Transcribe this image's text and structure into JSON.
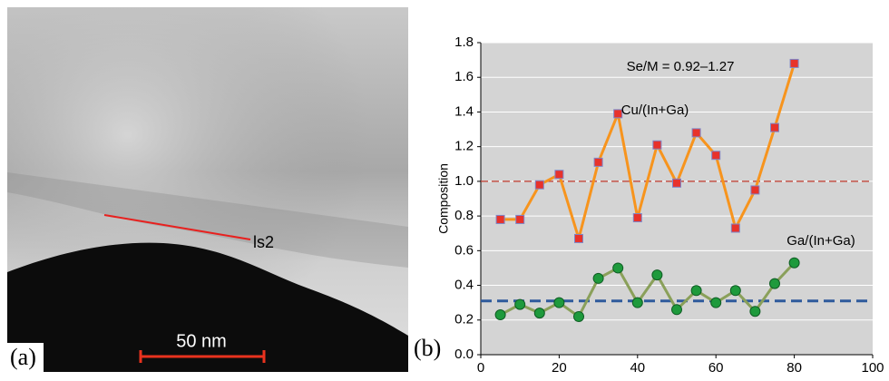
{
  "panel_a": {
    "label": "(a)",
    "line_label": "ls2",
    "scale_bar": "50 nm"
  },
  "chart_data": {
    "type": "line",
    "panel_label": "(b)",
    "ylabel": "Composition",
    "x": [
      5,
      10,
      15,
      20,
      25,
      30,
      35,
      40,
      45,
      50,
      55,
      60,
      65,
      70,
      75,
      80
    ],
    "series": [
      {
        "name": "Cu/(In+Ga)",
        "color": "#f7941d",
        "marker": "square",
        "marker_color": "#e8322b",
        "values": [
          0.78,
          0.78,
          0.98,
          1.04,
          0.67,
          1.11,
          1.39,
          0.79,
          1.21,
          0.99,
          1.28,
          1.15,
          0.73,
          0.95,
          1.31,
          1.68
        ]
      },
      {
        "name": "Ga/(In+Ga)",
        "color": "#8aa05a",
        "marker": "circle",
        "marker_color": "#1e9a3c",
        "values": [
          0.23,
          0.29,
          0.24,
          0.3,
          0.22,
          0.44,
          0.5,
          0.3,
          0.46,
          0.26,
          0.37,
          0.3,
          0.37,
          0.25,
          0.41,
          0.53
        ]
      }
    ],
    "reference_lines": [
      {
        "value": 1,
        "color": "#c0392b"
      },
      {
        "value": 0.31,
        "color": "#2e5a9c"
      }
    ],
    "annotation": "Se/M = 0.92–1.27",
    "xlim": [
      0,
      100
    ],
    "xticks": [
      0,
      20,
      40,
      60,
      80,
      100
    ],
    "ylim": [
      0,
      1.8
    ],
    "yticks": [
      {
        "value": 0,
        "label": "0.0"
      },
      0.2,
      0.4,
      0.6,
      0.8,
      {
        "value": 1,
        "label": "1.0"
      },
      1.2,
      1.4,
      1.6,
      1.8
    ],
    "grid": true
  }
}
